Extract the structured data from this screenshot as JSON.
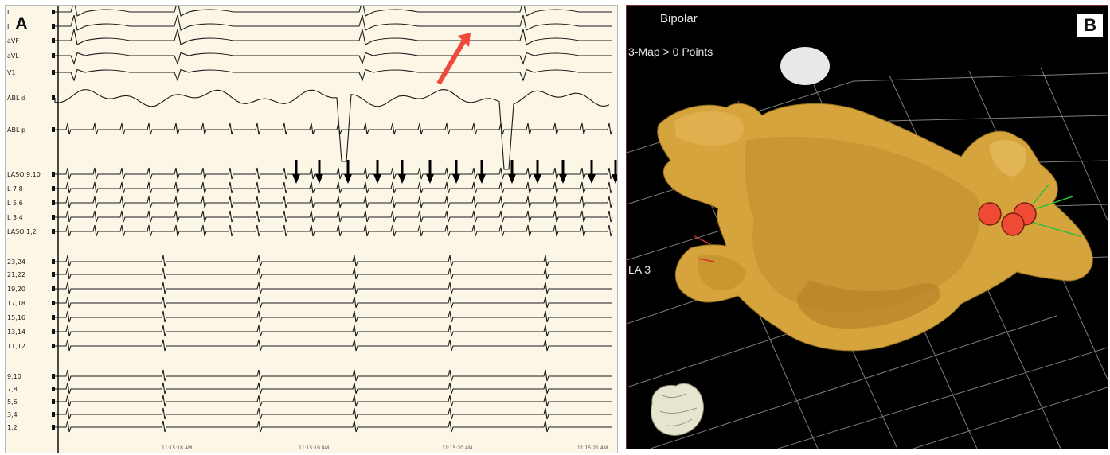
{
  "panel_a": {
    "label": "A",
    "leads": [
      "I",
      "II",
      "aVF",
      "aVL",
      "V1",
      "ABL d",
      "ABL p",
      "LASO 9,10",
      "L 7,8",
      "L 5,6",
      "L 3,4",
      "LASO 1,2",
      "23,24",
      "21,22",
      "19,20",
      "17,18",
      "15,16",
      "13,14",
      "11,12",
      "9,10",
      "7,8",
      "5,6",
      "3,4",
      "1,2"
    ],
    "time_labels": [
      "11:15:18 AM",
      "11:15:19 AM",
      "11:15:20 AM",
      "11:15:21 AM"
    ],
    "arrow_color": "#f0483a"
  },
  "panel_b": {
    "label": "B",
    "title": "Bipolar",
    "subtitle": "3-Map > 0 Points",
    "region_label": "LA 3",
    "chamber_color": "#d8a940",
    "ablation_point_color": "#ef4a33",
    "grid_color": "#8a8a8a"
  }
}
